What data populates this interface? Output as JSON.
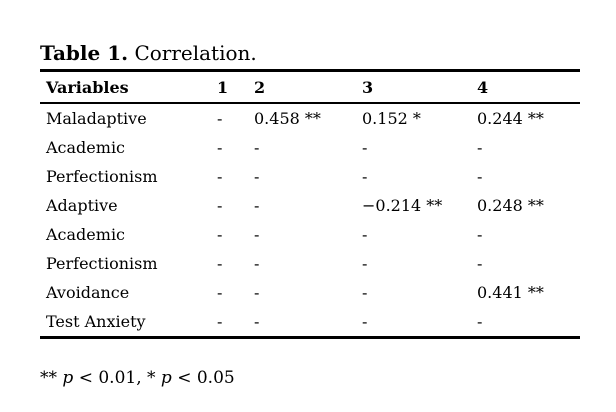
{
  "title": {
    "label": "Table 1.",
    "caption": "Correlation."
  },
  "table": {
    "headers": [
      "Variables",
      "1",
      "2",
      "3",
      "4"
    ],
    "rows": [
      {
        "variable": "Maladaptive",
        "values": [
          "-",
          "0.458 **",
          "0.152 *",
          "0.244 **"
        ]
      },
      {
        "variable": "Academic",
        "values": [
          "-",
          "-",
          "-",
          "-"
        ]
      },
      {
        "variable": "Perfectionism",
        "values": [
          "-",
          "-",
          "-",
          "-"
        ]
      },
      {
        "variable": "Adaptive",
        "values": [
          "-",
          "-",
          "−0.214 **",
          "0.248 **"
        ]
      },
      {
        "variable": "Academic",
        "values": [
          "-",
          "-",
          "-",
          "-"
        ]
      },
      {
        "variable": "Perfectionism",
        "values": [
          "-",
          "-",
          "-",
          "-"
        ]
      },
      {
        "variable": "Avoidance",
        "values": [
          "-",
          "-",
          "-",
          "0.441 **"
        ]
      },
      {
        "variable": "Test Anxiety",
        "values": [
          "-",
          "-",
          "-",
          "-"
        ]
      }
    ]
  },
  "footnote": {
    "parts": [
      {
        "text": "** ",
        "italic": false
      },
      {
        "text": "p",
        "italic": true
      },
      {
        "text": " < 0.01, * ",
        "italic": false
      },
      {
        "text": "p",
        "italic": true
      },
      {
        "text": " < 0.05",
        "italic": false
      }
    ]
  },
  "colors": {
    "text": "#000000",
    "background": "#ffffff",
    "rule": "#000000"
  }
}
